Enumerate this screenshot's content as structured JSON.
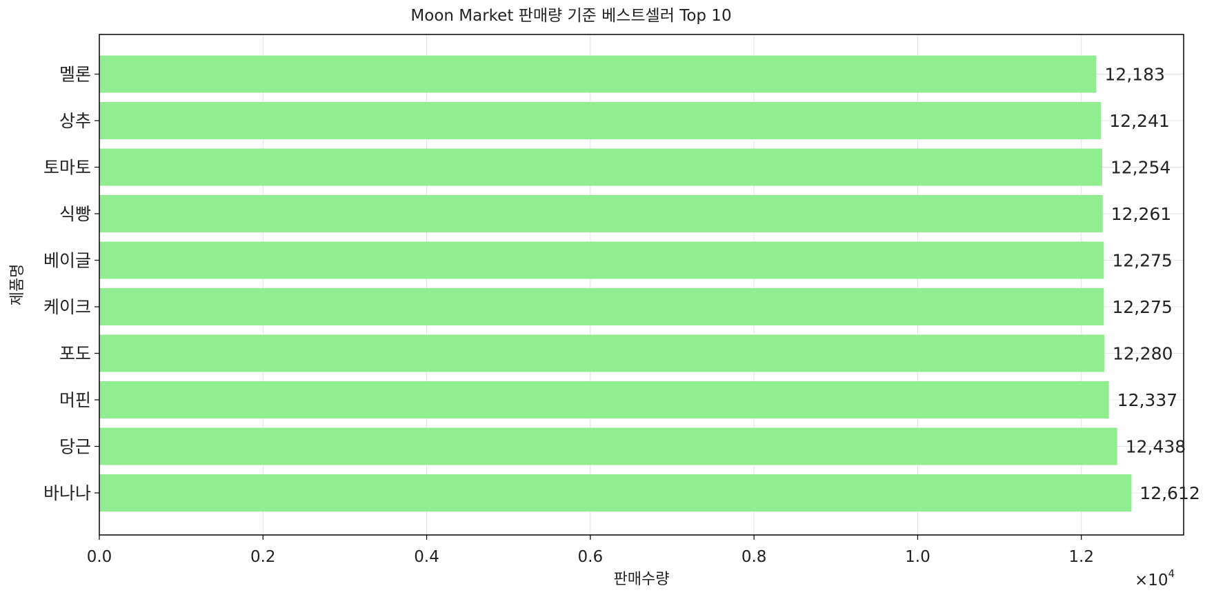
{
  "chart_data": {
    "type": "bar",
    "orientation": "horizontal",
    "title": "Moon Market 판매량 기준 베스트셀러 Top 10",
    "xlabel": "판매수량",
    "ylabel": "제품명",
    "categories": [
      "바나나",
      "당근",
      "머핀",
      "포도",
      "케이크",
      "베이글",
      "식빵",
      "토마토",
      "상추",
      "멜론"
    ],
    "values": [
      12612,
      12438,
      12337,
      12280,
      12275,
      12275,
      12261,
      12254,
      12241,
      12183
    ],
    "value_labels": [
      "12,612",
      "12,438",
      "12,337",
      "12,280",
      "12,275",
      "12,275",
      "12,261",
      "12,254",
      "12,241",
      "12,183"
    ],
    "xlim": [
      0,
      13250
    ],
    "xticks": [
      0,
      2000,
      4000,
      6000,
      8000,
      10000,
      12000
    ],
    "xtick_labels": [
      "0.0",
      "0.2",
      "0.4",
      "0.6",
      "0.8",
      "1.0",
      "1.2"
    ],
    "offset_text": "×10",
    "offset_exponent": "4",
    "grid": true,
    "bar_color": "#90ee90"
  }
}
